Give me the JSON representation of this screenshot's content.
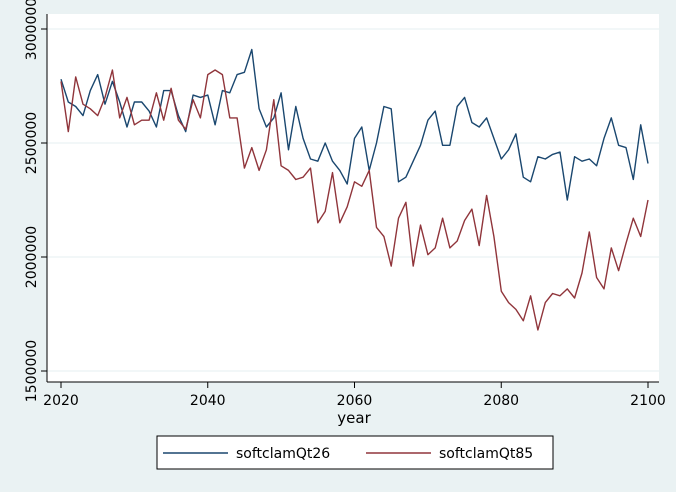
{
  "chart_data": {
    "type": "line",
    "title": "",
    "xlabel": "year",
    "ylabel": "",
    "xlim": [
      2020,
      2100
    ],
    "ylim": [
      1500000,
      3000000
    ],
    "x_ticks": [
      "2020",
      "2040",
      "2060",
      "2080",
      "2100"
    ],
    "y_ticks": [
      "1500000",
      "2000000",
      "2500000",
      "3000000"
    ],
    "grid": true,
    "legend_position": "bottom",
    "x": [
      2020,
      2021,
      2022,
      2023,
      2024,
      2025,
      2026,
      2027,
      2028,
      2029,
      2030,
      2031,
      2032,
      2033,
      2034,
      2035,
      2036,
      2037,
      2038,
      2039,
      2040,
      2041,
      2042,
      2043,
      2044,
      2045,
      2046,
      2047,
      2048,
      2049,
      2050,
      2051,
      2052,
      2053,
      2054,
      2055,
      2056,
      2057,
      2058,
      2059,
      2060,
      2061,
      2062,
      2063,
      2064,
      2065,
      2066,
      2067,
      2068,
      2069,
      2070,
      2071,
      2072,
      2073,
      2074,
      2075,
      2076,
      2077,
      2078,
      2079,
      2080,
      2081,
      2082,
      2083,
      2084,
      2085,
      2086,
      2087,
      2088,
      2089,
      2090,
      2091,
      2092,
      2093,
      2094,
      2095,
      2096,
      2097,
      2098,
      2099,
      2100
    ],
    "series": [
      {
        "name": "softclamQt26",
        "color": "#1a476f",
        "values": [
          2780000,
          2680000,
          2660000,
          2620000,
          2730000,
          2800000,
          2670000,
          2770000,
          2680000,
          2570000,
          2680000,
          2680000,
          2640000,
          2570000,
          2730000,
          2730000,
          2620000,
          2550000,
          2710000,
          2700000,
          2710000,
          2580000,
          2730000,
          2720000,
          2800000,
          2810000,
          2910000,
          2650000,
          2570000,
          2610000,
          2720000,
          2470000,
          2660000,
          2520000,
          2430000,
          2420000,
          2500000,
          2420000,
          2380000,
          2320000,
          2520000,
          2570000,
          2380000,
          2500000,
          2660000,
          2650000,
          2330000,
          2350000,
          2420000,
          2490000,
          2600000,
          2640000,
          2490000,
          2490000,
          2660000,
          2700000,
          2590000,
          2570000,
          2610000,
          2520000,
          2430000,
          2470000,
          2540000,
          2350000,
          2330000,
          2440000,
          2430000,
          2450000,
          2460000,
          2250000,
          2440000,
          2420000,
          2430000,
          2400000,
          2520000,
          2610000,
          2490000,
          2480000,
          2340000,
          2580000,
          2410000
        ]
      },
      {
        "name": "softclamQt85",
        "color": "#90353b",
        "values": [
          2770000,
          2550000,
          2790000,
          2670000,
          2650000,
          2620000,
          2700000,
          2820000,
          2610000,
          2700000,
          2580000,
          2600000,
          2600000,
          2720000,
          2600000,
          2740000,
          2600000,
          2560000,
          2690000,
          2610000,
          2800000,
          2820000,
          2800000,
          2610000,
          2610000,
          2390000,
          2480000,
          2380000,
          2470000,
          2690000,
          2400000,
          2380000,
          2340000,
          2350000,
          2390000,
          2150000,
          2200000,
          2370000,
          2150000,
          2220000,
          2330000,
          2310000,
          2380000,
          2130000,
          2090000,
          1960000,
          2170000,
          2240000,
          1960000,
          2140000,
          2010000,
          2040000,
          2170000,
          2040000,
          2070000,
          2160000,
          2210000,
          2050000,
          2270000,
          2090000,
          1850000,
          1800000,
          1770000,
          1720000,
          1830000,
          1680000,
          1800000,
          1840000,
          1830000,
          1860000,
          1820000,
          1930000,
          2110000,
          1910000,
          1860000,
          2040000,
          1940000,
          2060000,
          2170000,
          2090000,
          2250000
        ]
      }
    ]
  }
}
